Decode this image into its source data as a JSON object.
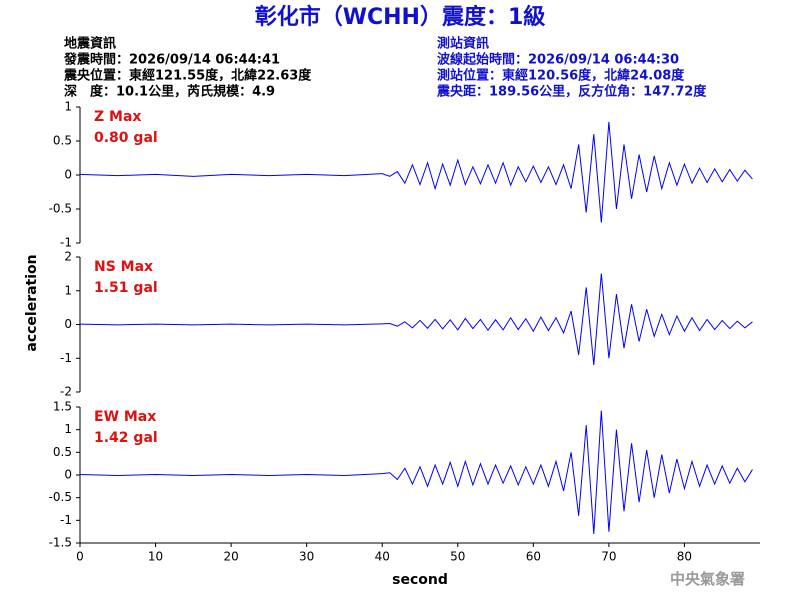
{
  "chart_data": {
    "type": "line",
    "title": "彰化市（WCHH）震度：1級",
    "header_left": [
      "地震資訊",
      "發震時間：2026/09/14 06:44:41",
      "震央位置：東經121.55度，北緯22.63度",
      "深　度：10.1公里，芮氏規模：4.9"
    ],
    "header_right": [
      "測站資訊",
      "波線起始時間：2026/09/14 06:44:30",
      "測站位置：東經120.56度，北緯24.08度",
      "震央距：189.56公里，反方位角：147.72度"
    ],
    "xlabel": "second",
    "ylabel": "acceleration",
    "source": "中央氣象署",
    "xlim": [
      0,
      90
    ],
    "xticks": [
      0,
      10,
      20,
      30,
      40,
      50,
      60,
      70,
      80
    ],
    "x": [
      0,
      5,
      10,
      15,
      20,
      25,
      30,
      35,
      40,
      41,
      42,
      43,
      44,
      45,
      46,
      47,
      48,
      49,
      50,
      51,
      52,
      53,
      54,
      55,
      56,
      57,
      58,
      59,
      60,
      61,
      62,
      63,
      64,
      65,
      66,
      67,
      68,
      69,
      70,
      71,
      72,
      73,
      74,
      75,
      76,
      77,
      78,
      79,
      80,
      81,
      82,
      83,
      84,
      85,
      86,
      87,
      88,
      89
    ],
    "panels": [
      {
        "name": "Z Max",
        "max_label": "0.80 gal",
        "color": "#0000ff",
        "ylim": [
          -1,
          1
        ],
        "yticks": [
          -1,
          -0.5,
          0,
          0.5,
          1
        ],
        "values": [
          0.01,
          -0.01,
          0.01,
          -0.02,
          0.01,
          -0.01,
          0.01,
          -0.01,
          0.02,
          -0.02,
          0.05,
          -0.12,
          0.15,
          -0.14,
          0.18,
          -0.2,
          0.16,
          -0.15,
          0.22,
          -0.14,
          0.12,
          -0.13,
          0.15,
          -0.12,
          0.18,
          -0.15,
          0.12,
          -0.1,
          0.13,
          -0.11,
          0.12,
          -0.14,
          0.15,
          -0.2,
          0.45,
          -0.55,
          0.6,
          -0.7,
          0.78,
          -0.5,
          0.45,
          -0.35,
          0.3,
          -0.25,
          0.28,
          -0.2,
          0.18,
          -0.15,
          0.16,
          -0.12,
          0.1,
          -0.11,
          0.09,
          -0.1,
          0.08,
          -0.09,
          0.07,
          -0.06
        ]
      },
      {
        "name": "NS Max",
        "max_label": "1.51 gal",
        "color": "#0000ff",
        "ylim": [
          -2,
          2
        ],
        "yticks": [
          -2,
          -1,
          0,
          1,
          2
        ],
        "values": [
          0.01,
          -0.01,
          0.01,
          -0.01,
          0.01,
          -0.01,
          0.01,
          -0.01,
          0.02,
          0.03,
          -0.05,
          0.08,
          -0.1,
          0.12,
          -0.11,
          0.15,
          -0.13,
          0.14,
          -0.16,
          0.18,
          -0.12,
          0.15,
          -0.17,
          0.14,
          -0.16,
          0.2,
          -0.15,
          0.17,
          -0.2,
          0.22,
          -0.18,
          0.2,
          -0.25,
          0.4,
          -0.9,
          1.1,
          -1.2,
          1.51,
          -1.0,
          0.9,
          -0.7,
          0.6,
          -0.5,
          0.45,
          -0.35,
          0.3,
          -0.3,
          0.25,
          -0.2,
          0.2,
          -0.18,
          0.15,
          -0.15,
          0.12,
          -0.12,
          0.1,
          -0.1,
          0.08
        ]
      },
      {
        "name": "EW Max",
        "max_label": "1.42 gal",
        "color": "#0000ff",
        "ylim": [
          -1.5,
          1.5
        ],
        "yticks": [
          -1.5,
          -1,
          -0.5,
          0,
          0.5,
          1,
          1.5
        ],
        "values": [
          0.01,
          -0.01,
          0.01,
          -0.01,
          0.01,
          -0.01,
          0.01,
          -0.01,
          0.03,
          0.05,
          -0.1,
          0.15,
          -0.2,
          0.18,
          -0.25,
          0.22,
          -0.2,
          0.28,
          -0.25,
          0.3,
          -0.22,
          0.25,
          -0.2,
          0.22,
          -0.18,
          0.2,
          -0.22,
          0.18,
          -0.2,
          0.22,
          -0.25,
          0.3,
          -0.35,
          0.5,
          -0.9,
          1.1,
          -1.3,
          1.42,
          -1.25,
          1.0,
          -0.8,
          0.7,
          -0.6,
          0.55,
          -0.5,
          0.45,
          -0.4,
          0.35,
          -0.3,
          0.3,
          -0.25,
          0.22,
          -0.2,
          0.2,
          -0.18,
          0.15,
          -0.15,
          0.12
        ]
      }
    ]
  }
}
